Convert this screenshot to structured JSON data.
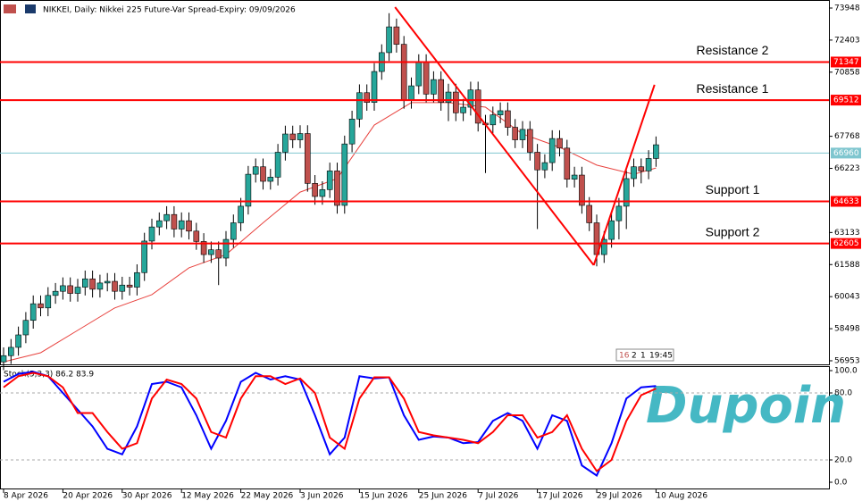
{
  "chart_data": [
    {
      "type": "candlestick",
      "title": "NIKKEI, Daily: Nikkei 225 Future-Var Spread-Expiry: 09/09/2026",
      "categories": [
        "8 Apr 2026",
        null,
        null,
        null,
        null,
        null,
        null,
        null,
        "20 Apr 2026",
        null,
        null,
        null,
        null,
        null,
        null,
        null,
        "30 Apr 2026",
        null,
        null,
        null,
        null,
        null,
        null,
        null,
        "12 May 2026",
        null,
        null,
        null,
        null,
        null,
        null,
        null,
        "22 May 2026",
        null,
        null,
        null,
        null,
        null,
        null,
        null,
        "3 Jun 2026",
        null,
        null,
        null,
        null,
        null,
        null,
        null,
        "15 Jun 2026",
        null,
        null,
        null,
        null,
        null,
        null,
        null,
        "25 Jun 2026",
        null,
        null,
        null,
        null,
        null,
        null,
        null,
        "7 Jul 2026",
        null,
        null,
        null,
        null,
        null,
        null,
        null,
        "17 Jul 2026",
        null,
        null,
        null,
        null,
        null,
        null,
        null,
        "29 Jul 2026",
        null,
        null,
        null,
        null,
        null,
        null,
        null,
        "10 Aug 2026"
      ],
      "open": [
        56900,
        57200,
        57600,
        58200,
        58900,
        59700,
        59500,
        60100,
        60300,
        60570,
        60200,
        60500,
        60900,
        60400,
        60700,
        60780,
        60300,
        60600,
        60500,
        61200,
        62720,
        63400,
        63700,
        64000,
        63300,
        63700,
        63200,
        62700,
        62070,
        62300,
        61900,
        62800,
        63600,
        64400,
        65940,
        66300,
        65600,
        65800,
        67000,
        67880,
        67600,
        67900,
        65500,
        64870,
        65200,
        66100,
        64440,
        67400,
        68600,
        69870,
        69400,
        70890,
        71800,
        73040,
        72200,
        69500,
        70200,
        71320,
        69800,
        70500,
        69400,
        69900,
        68900,
        69170,
        70000,
        68400,
        68320,
        68800,
        69000,
        68200,
        67600,
        68100,
        67000,
        66150,
        66500,
        67660,
        67200,
        65700,
        65900,
        64440,
        63600,
        62070,
        62800,
        63700,
        64400,
        65730,
        66300,
        66100,
        66700
      ],
      "high": [
        57600,
        58000,
        58600,
        59300,
        60100,
        60100,
        60500,
        60700,
        60970,
        60970,
        60900,
        61300,
        61300,
        61100,
        61180,
        61180,
        61000,
        61000,
        61600,
        63120,
        63800,
        64100,
        64400,
        64400,
        64100,
        64100,
        63600,
        63100,
        62700,
        62700,
        63200,
        64000,
        64800,
        66340,
        66700,
        66700,
        66200,
        67400,
        68280,
        68280,
        68300,
        68300,
        65900,
        65600,
        66500,
        66500,
        67800,
        69000,
        70270,
        70270,
        71290,
        72200,
        73700,
        73440,
        72600,
        70600,
        71720,
        71720,
        70900,
        70900,
        70300,
        70300,
        69570,
        70400,
        70400,
        68800,
        69200,
        69400,
        69400,
        68600,
        68500,
        68500,
        67400,
        66900,
        68060,
        68060,
        67600,
        66300,
        66300,
        64840,
        64000,
        63200,
        64100,
        64800,
        66130,
        66700,
        66700,
        67100,
        67760
      ],
      "low": [
        56500,
        56800,
        57200,
        57800,
        58500,
        59100,
        59100,
        59700,
        59900,
        59800,
        59800,
        60100,
        60000,
        60000,
        60300,
        59900,
        59900,
        60100,
        60100,
        60800,
        62320,
        63000,
        63300,
        62900,
        62900,
        62800,
        62300,
        61670,
        61670,
        60600,
        61500,
        62400,
        63200,
        64000,
        65540,
        65200,
        65200,
        65400,
        66600,
        67200,
        67200,
        65100,
        64470,
        64470,
        64800,
        64040,
        64040,
        67000,
        68200,
        69000,
        69000,
        70490,
        71400,
        71800,
        69100,
        69100,
        69800,
        69400,
        69400,
        69000,
        68500,
        68500,
        68500,
        68770,
        68000,
        66000,
        67920,
        68400,
        67800,
        67200,
        67200,
        66600,
        63300,
        65750,
        66100,
        66800,
        65300,
        65300,
        64040,
        63200,
        61500,
        61670,
        62400,
        62800,
        63300,
        65330,
        65500,
        65700,
        66300
      ],
      "close": [
        57200,
        57600,
        58200,
        58900,
        59700,
        59500,
        60100,
        60300,
        60570,
        60200,
        60500,
        60900,
        60400,
        60700,
        60780,
        60300,
        60600,
        60500,
        61200,
        62720,
        63400,
        63700,
        64000,
        63300,
        63700,
        63200,
        62700,
        62070,
        62300,
        61900,
        62800,
        63600,
        64400,
        65940,
        66300,
        65600,
        65800,
        67000,
        67880,
        67600,
        67900,
        65500,
        64870,
        65200,
        66100,
        64440,
        67400,
        68600,
        69870,
        69400,
        70890,
        71800,
        73040,
        72200,
        69500,
        70200,
        71320,
        69800,
        70500,
        69400,
        69900,
        68900,
        69170,
        70000,
        68400,
        68320,
        68800,
        69000,
        68200,
        67600,
        68100,
        67000,
        66150,
        66500,
        67660,
        67200,
        65700,
        65900,
        64440,
        63600,
        62070,
        62800,
        63700,
        64400,
        65730,
        66300,
        66100,
        66700,
        67360
      ],
      "up_color": "#26a69a",
      "down_color": "#c0504d",
      "ylim": [
        56780,
        74335
      ],
      "yticks": [
        73948,
        72403,
        70858,
        67768,
        66223,
        63133,
        61588,
        60043,
        58498,
        56953
      ],
      "ma": {
        "color": "#e8433f",
        "x": [
          0,
          5,
          10,
          15,
          20,
          25,
          30,
          35,
          40,
          45,
          50,
          55,
          60,
          65,
          70,
          75,
          80,
          85,
          88
        ],
        "values": [
          56900,
          57340,
          58420,
          59500,
          60140,
          61430,
          62070,
          63600,
          65080,
          65730,
          68310,
          69390,
          69390,
          69170,
          67880,
          67240,
          66380,
          65940,
          66240
        ]
      },
      "levels": [
        {
          "label": "Resistance 2",
          "value": 71347,
          "color": "#ff0000"
        },
        {
          "label": "Resistance 1",
          "value": 69512,
          "color": "#ff0000"
        },
        {
          "label": "Support 1",
          "value": 64633,
          "color": "#ff0000"
        },
        {
          "label": "Support 2",
          "value": 62605,
          "color": "#ff0000"
        }
      ],
      "current": {
        "value": 66960,
        "color": "#7fc6cf"
      },
      "trendlines": [
        {
          "color": "#ff0000",
          "x": [
            52.8,
            79.6
          ],
          "values": [
            73990,
            61560
          ]
        },
        {
          "color": "#ff0000",
          "x": [
            79.6,
            87.8
          ],
          "values": [
            61560,
            70250
          ]
        }
      ],
      "timer": [
        "16",
        "2",
        "1",
        "19:45"
      ]
    },
    {
      "type": "line",
      "title": "Stoch(5,3,3) 86.2 83.9",
      "x": [
        0,
        2,
        4,
        6,
        8,
        10,
        12,
        14,
        16,
        18,
        20,
        22,
        24,
        26,
        28,
        30,
        32,
        34,
        36,
        38,
        40,
        42,
        44,
        46,
        48,
        50,
        52,
        54,
        56,
        58,
        60,
        62,
        64,
        66,
        68,
        70,
        72,
        74,
        76,
        78,
        80,
        82,
        84,
        86,
        88
      ],
      "series": [
        {
          "color": "#0000ff",
          "values": [
            90,
            97,
            99,
            95,
            80,
            65,
            50,
            30,
            25,
            50,
            88,
            90,
            85,
            60,
            30,
            55,
            90,
            98,
            92,
            95,
            92,
            60,
            25,
            40,
            95,
            93,
            94,
            60,
            38,
            41,
            40,
            35,
            36,
            55,
            62,
            55,
            30,
            60,
            55,
            15,
            6,
            35,
            75,
            85,
            86.2
          ]
        },
        {
          "color": "#ff0000",
          "values": [
            85,
            95,
            98,
            95,
            85,
            62,
            62,
            45,
            30,
            35,
            75,
            92,
            88,
            75,
            45,
            40,
            75,
            95,
            95,
            88,
            93,
            80,
            40,
            30,
            75,
            94,
            94,
            75,
            45,
            42,
            40,
            38,
            35,
            45,
            60,
            60,
            40,
            45,
            60,
            30,
            10,
            20,
            55,
            78,
            83.9
          ]
        }
      ],
      "ylim": [
        -6.4,
        104
      ],
      "yticks": [
        {
          "value": 100,
          "label": "100.0"
        },
        {
          "value": 80,
          "label": "80.0"
        },
        {
          "value": 20,
          "label": "20.0"
        },
        {
          "value": 0,
          "label": "0.0"
        }
      ],
      "grid_levels": [
        80,
        20
      ]
    }
  ],
  "logo": "Dupoin"
}
